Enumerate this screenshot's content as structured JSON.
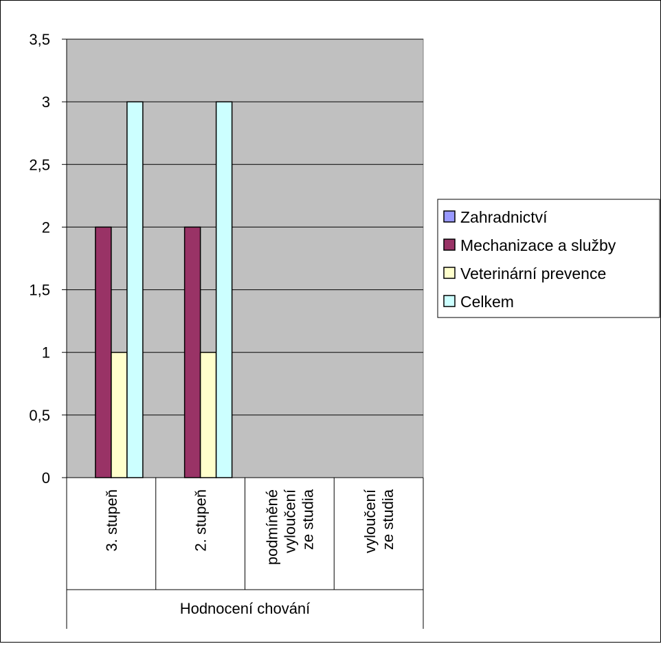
{
  "chart_data": {
    "type": "bar",
    "categories": [
      "3. stupeň",
      "2. stupeň",
      "podmíněné vyloučení ze studia",
      "vyloučení ze studia"
    ],
    "category_lines": [
      [
        "3. stupeň"
      ],
      [
        "2. stupeň"
      ],
      [
        "podmíněné",
        "vyloučení",
        "ze studia"
      ],
      [
        "vyloučení",
        "ze studia"
      ]
    ],
    "group_label": "Hodnocení chování",
    "series": [
      {
        "name": "Zahradnictví",
        "color": "#9999ff",
        "values": [
          0,
          0,
          0,
          0
        ]
      },
      {
        "name": "Mechanizace a služby",
        "color": "#993366",
        "values": [
          2,
          2,
          0,
          0
        ]
      },
      {
        "name": "Veterinární prevence",
        "color": "#ffffcc",
        "values": [
          1,
          1,
          0,
          0
        ]
      },
      {
        "name": "Celkem",
        "color": "#ccffff",
        "values": [
          3,
          3,
          0,
          0
        ]
      }
    ],
    "y_ticks": [
      "0",
      "0,5",
      "1",
      "1,5",
      "2",
      "2,5",
      "3",
      "3,5"
    ],
    "ylim": [
      0,
      3.5
    ],
    "grid": true,
    "plot_background": "#c0c0c0",
    "legend_position": "right"
  }
}
